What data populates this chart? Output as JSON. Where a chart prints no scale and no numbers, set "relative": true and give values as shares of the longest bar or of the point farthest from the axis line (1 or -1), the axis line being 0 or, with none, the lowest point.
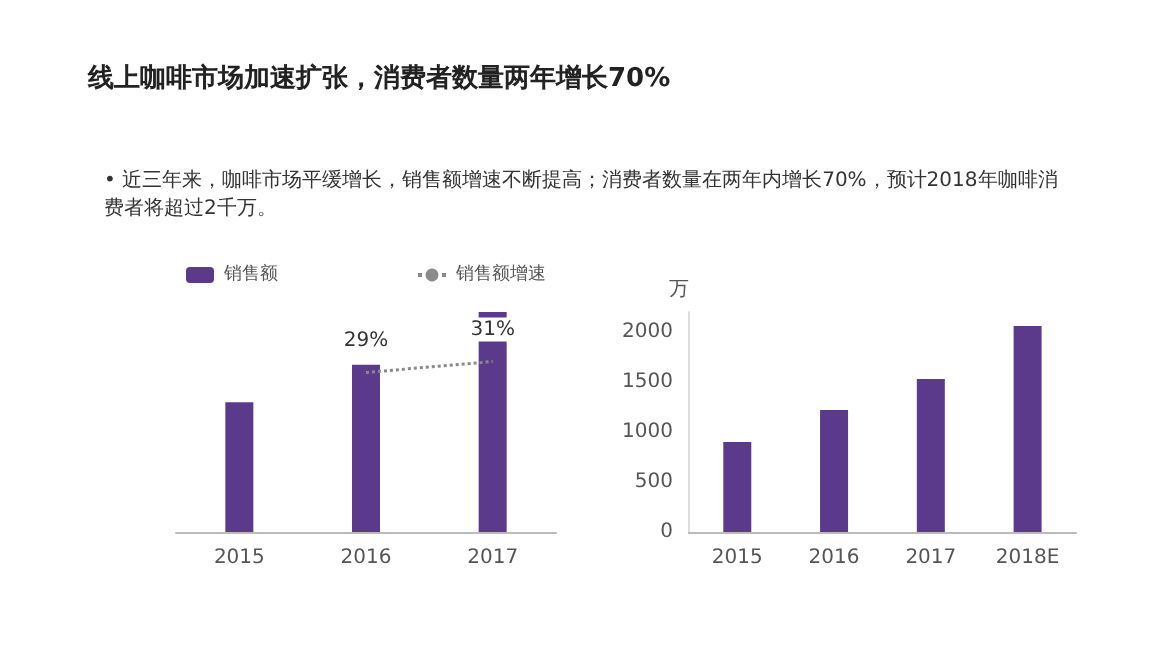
{
  "chart_data": [
    {
      "type": "bar",
      "title": "线上咖啡市场加速扩张，消费者数量两年增长70%",
      "annotations": [
        "• 近三年来，咖啡市场平缓增长，销售额增速不断提高；消费者数量在两年内增长70%，预计2018年咖啡消费者将超过2千万。"
      ],
      "categories": [
        "2015",
        "2016",
        "2017"
      ],
      "relative": true,
      "legend": "top left",
      "grid": false,
      "series": [
        {
          "name": "销售额",
          "color": "#5b3a8c",
          "values": [
            0.59,
            0.76,
            1
          ]
        }
      ]
    },
    {
      "type": "line",
      "categories": [
        "2015",
        "2016",
        "2017"
      ],
      "legend": "top right",
      "grid": false,
      "tick_labels": false,
      "line_style": "dotted",
      "marker": "none",
      "series": [
        {
          "name": "销售额增速",
          "color": "#8a8a8a",
          "values": [
            null,
            29,
            31
          ],
          "value_labels": [
            null,
            "29%",
            "31%"
          ]
        }
      ]
    },
    {
      "type": "bar",
      "ylabel": "万",
      "categories": [
        "2015",
        "2016",
        "2017",
        "2018E"
      ],
      "values": [
        900,
        1220,
        1530,
        2060
      ],
      "color": "#5b3a8c",
      "ylim": [
        0,
        2200
      ],
      "yticks": [
        0,
        500,
        1000,
        1500,
        2000
      ],
      "grid": false,
      "legend": false
    }
  ]
}
